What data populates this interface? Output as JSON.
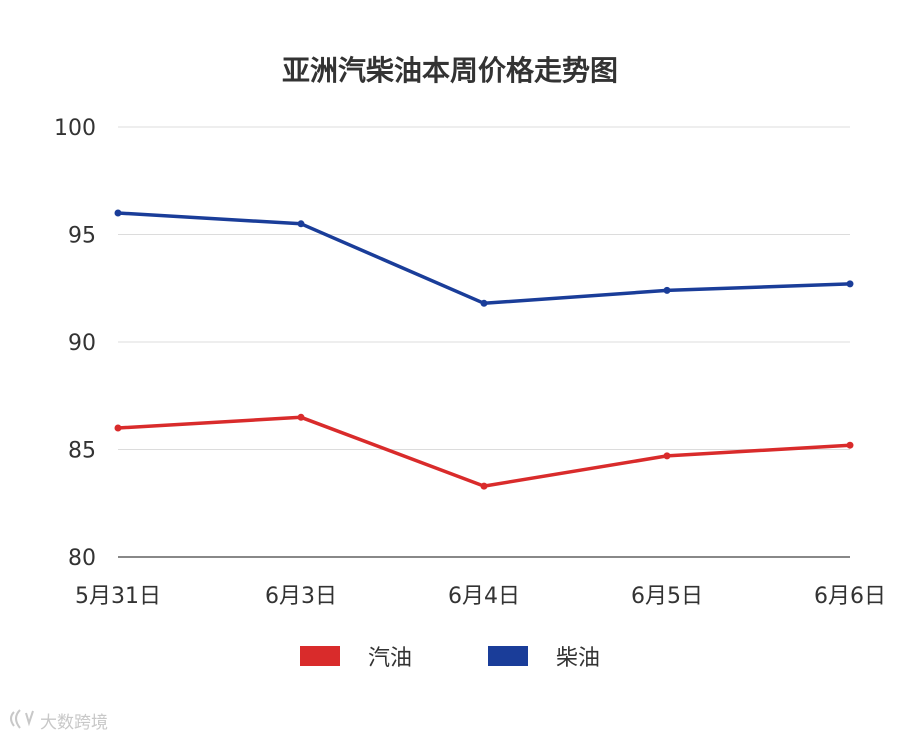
{
  "chart_data": {
    "type": "line",
    "title": "亚洲汽柴油本周价格走势图",
    "categories": [
      "5月31日",
      "6月3日",
      "6月4日",
      "6月5日",
      "6月6日"
    ],
    "ylim": [
      80,
      100
    ],
    "yticks": [
      "80",
      "85",
      "90",
      "95",
      "100"
    ],
    "grid": true,
    "legend_position": "bottom-center",
    "series": [
      {
        "name": "汽油",
        "color": "#d92b2b",
        "values": [
          86.0,
          86.5,
          83.3,
          84.7,
          85.2
        ]
      },
      {
        "name": "柴油",
        "color": "#1a3d99",
        "values": [
          96.0,
          95.5,
          91.8,
          92.4,
          92.7
        ]
      }
    ]
  },
  "watermark": {
    "text": "大数跨境",
    "icon": "watermark-logo-icon"
  }
}
